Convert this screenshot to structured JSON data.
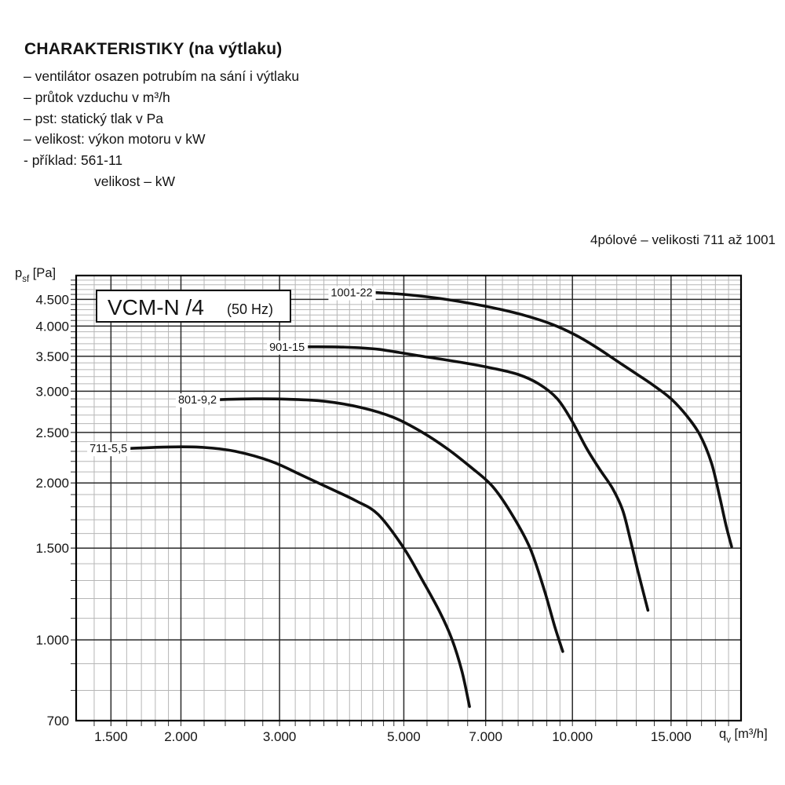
{
  "page": {
    "background": "#ffffff",
    "text_color": "#141414",
    "curve_color": "#101010",
    "grid_minor_color": "#b6b6b6",
    "grid_major_color": "#2a2a2a",
    "frame_color": "#000000"
  },
  "header": {
    "title": "CHARAKTERISTIKY (na výtlaku)",
    "lines": [
      "– ventilátor osazen potrubím na sání i výtlaku",
      "– průtok vzduchu v m³/h",
      "– pst: statický tlak v Pa",
      "– velikost: výkon motoru v kW",
      "- příklad: 561-11"
    ],
    "example_sub": "velikost – kW"
  },
  "subtitle": "4pólové – velikosti 711 až 1001",
  "chart_title": {
    "main": "VCM-N /4",
    "suffix": "(50 Hz)"
  },
  "axis_titles": {
    "y_prefix": "p",
    "y_sub": "sf",
    "y_unit": " [Pa]",
    "x_prefix": "q",
    "x_sub": "v",
    "x_unit": " [m³/h]"
  },
  "chart_data": {
    "type": "line",
    "title": "VCM-N /4 (50 Hz)",
    "xlabel": "qv [m³/h]",
    "ylabel": "psf [Pa]",
    "grid": true,
    "legend": "inline-curve-labels",
    "x_axis": {
      "scale": "log",
      "min": 1300,
      "max": 20000,
      "ticks": [
        1500,
        2000,
        3000,
        5000,
        7000,
        10000,
        15000
      ],
      "tick_labels": [
        "1.500",
        "2.000",
        "3.000",
        "5.000",
        "7.000",
        "10.000",
        "15.000"
      ],
      "minor_steps": [
        [
          1300,
          2000,
          100
        ],
        [
          2000,
          5000,
          200
        ],
        [
          5000,
          10000,
          500
        ],
        [
          10000,
          20000,
          1000
        ]
      ]
    },
    "y_axis": {
      "scale": "log",
      "min": 700,
      "max": 5000,
      "ticks": [
        700,
        1000,
        1500,
        2000,
        2500,
        3000,
        3500,
        4000,
        4500
      ],
      "tick_labels": [
        "700",
        "1.000",
        "1.500",
        "2.000",
        "2.500",
        "3.000",
        "3.500",
        "4.000",
        "4.500"
      ],
      "minor_steps": [
        [
          700,
          5000,
          100
        ]
      ]
    },
    "series": [
      {
        "name": "711-5,5",
        "points": [
          [
            1620,
            2330
          ],
          [
            1900,
            2345
          ],
          [
            2200,
            2340
          ],
          [
            2500,
            2300
          ],
          [
            2900,
            2200
          ],
          [
            3300,
            2065
          ],
          [
            3700,
            1950
          ],
          [
            4100,
            1850
          ],
          [
            4500,
            1740
          ],
          [
            5000,
            1500
          ],
          [
            5400,
            1300
          ],
          [
            5800,
            1130
          ],
          [
            6100,
            1000
          ],
          [
            6350,
            870
          ],
          [
            6550,
            745
          ]
        ]
      },
      {
        "name": "801-9,2",
        "points": [
          [
            2340,
            2890
          ],
          [
            2700,
            2900
          ],
          [
            3100,
            2895
          ],
          [
            3600,
            2870
          ],
          [
            4200,
            2790
          ],
          [
            4800,
            2670
          ],
          [
            5400,
            2500
          ],
          [
            6000,
            2320
          ],
          [
            6600,
            2140
          ],
          [
            7200,
            1970
          ],
          [
            7800,
            1740
          ],
          [
            8400,
            1500
          ],
          [
            8900,
            1250
          ],
          [
            9300,
            1060
          ],
          [
            9610,
            950
          ]
        ]
      },
      {
        "name": "901-15",
        "points": [
          [
            3360,
            3650
          ],
          [
            3900,
            3645
          ],
          [
            4500,
            3610
          ],
          [
            5300,
            3510
          ],
          [
            6300,
            3410
          ],
          [
            7200,
            3320
          ],
          [
            8000,
            3230
          ],
          [
            8700,
            3100
          ],
          [
            9400,
            2900
          ],
          [
            10000,
            2620
          ],
          [
            10600,
            2330
          ],
          [
            11200,
            2120
          ],
          [
            11800,
            1950
          ],
          [
            12300,
            1770
          ],
          [
            12700,
            1550
          ],
          [
            13100,
            1350
          ],
          [
            13640,
            1140
          ]
        ]
      },
      {
        "name": "1001-22",
        "points": [
          [
            4440,
            4640
          ],
          [
            5000,
            4600
          ],
          [
            5700,
            4530
          ],
          [
            6500,
            4430
          ],
          [
            7400,
            4310
          ],
          [
            8300,
            4180
          ],
          [
            9200,
            4030
          ],
          [
            10100,
            3850
          ],
          [
            11000,
            3650
          ],
          [
            12000,
            3430
          ],
          [
            13000,
            3240
          ],
          [
            14000,
            3070
          ],
          [
            15000,
            2900
          ],
          [
            16000,
            2690
          ],
          [
            16900,
            2470
          ],
          [
            17700,
            2190
          ],
          [
            18300,
            1890
          ],
          [
            18800,
            1660
          ],
          [
            19240,
            1510
          ]
        ]
      }
    ]
  }
}
